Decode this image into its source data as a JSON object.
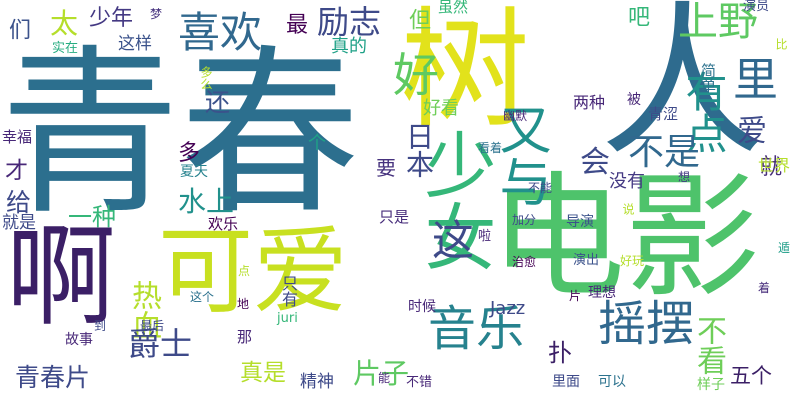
{
  "words": [
    {
      "text": "青春",
      "color": "#2c6f8e"
    },
    {
      "text": "树",
      "color": "#e2e21b"
    },
    {
      "text": "人",
      "color": "#2e6b8e"
    },
    {
      "text": "电影",
      "color": "#4ec36b"
    },
    {
      "text": "可爱",
      "color": "#c8e020"
    },
    {
      "text": "啊",
      "color": "#3b1f66"
    },
    {
      "text": "少女",
      "color": "#35b779"
    },
    {
      "text": "又与",
      "color": "#21918c"
    },
    {
      "text": "摇摆",
      "color": "#31688e"
    },
    {
      "text": "音乐",
      "color": "#26828e"
    },
    {
      "text": "喜欢",
      "color": "#31688e"
    },
    {
      "text": "好",
      "color": "#5ec962"
    },
    {
      "text": "有点",
      "color": "#21918c"
    },
    {
      "text": "上野",
      "color": "#5ec962"
    },
    {
      "text": "里",
      "color": "#31688e"
    },
    {
      "text": "爱",
      "color": "#3e4a89"
    },
    {
      "text": "不是",
      "color": "#31688e"
    },
    {
      "text": "不看",
      "color": "#6ece58"
    },
    {
      "text": "太",
      "color": "#b5de2b"
    },
    {
      "text": "少年",
      "color": "#443983"
    },
    {
      "text": "最",
      "color": "#440154"
    },
    {
      "text": "励志",
      "color": "#3e4a89"
    },
    {
      "text": "但",
      "color": "#6ece58"
    },
    {
      "text": "吧",
      "color": "#35b779"
    },
    {
      "text": "们",
      "color": "#3b528b"
    },
    {
      "text": "这样",
      "color": "#3b528b"
    },
    {
      "text": "实在",
      "color": "#27ad81"
    },
    {
      "text": "梦",
      "color": "#46327e"
    },
    {
      "text": "虽然",
      "color": "#35b779"
    },
    {
      "text": "演员",
      "color": "#3e4a89"
    },
    {
      "text": "真的",
      "color": "#1fa187"
    },
    {
      "text": "多么",
      "color": "#b5de2b"
    },
    {
      "text": "还",
      "color": "#3b528b"
    },
    {
      "text": "日本",
      "color": "#3e4a89"
    },
    {
      "text": "好看",
      "color": "#6ece58"
    },
    {
      "text": "被",
      "color": "#482878"
    },
    {
      "text": "简单",
      "color": "#2c728e"
    },
    {
      "text": "两种",
      "color": "#482878"
    },
    {
      "text": "比",
      "color": "#b5de2b"
    },
    {
      "text": "幽默",
      "color": "#482878"
    },
    {
      "text": "青涩",
      "color": "#3e4a89"
    },
    {
      "text": "幸福",
      "color": "#482878"
    },
    {
      "text": "多",
      "color": "#440154"
    },
    {
      "text": "会",
      "color": "#3e4a89"
    },
    {
      "text": "夏天",
      "color": "#26828e"
    },
    {
      "text": "个",
      "color": "#1fa187"
    },
    {
      "text": "看着",
      "color": "#2c728e"
    },
    {
      "text": "就",
      "color": "#472d7b"
    },
    {
      "text": "世界",
      "color": "#b5de2b"
    },
    {
      "text": "才",
      "color": "#482878"
    },
    {
      "text": "水上",
      "color": "#21918c"
    },
    {
      "text": "要",
      "color": "#46327e"
    },
    {
      "text": "没有",
      "color": "#443983"
    },
    {
      "text": "不能",
      "color": "#3e4a89"
    },
    {
      "text": "想",
      "color": "#443983"
    },
    {
      "text": "给",
      "color": "#3e4a89"
    },
    {
      "text": "一种",
      "color": "#35b779"
    },
    {
      "text": "就是",
      "color": "#3e4a89"
    },
    {
      "text": "欢乐",
      "color": "#440154"
    },
    {
      "text": "只是",
      "color": "#472d7b"
    },
    {
      "text": "加分",
      "color": "#3e4a89"
    },
    {
      "text": "导演",
      "color": "#3b528b"
    },
    {
      "text": "说",
      "color": "#b5de2b"
    },
    {
      "text": "遁",
      "color": "#1f9e89"
    },
    {
      "text": "这",
      "color": "#3e4a89"
    },
    {
      "text": "啦",
      "color": "#482878"
    },
    {
      "text": "治愈",
      "color": "#440154"
    },
    {
      "text": "演出",
      "color": "#3b528b"
    },
    {
      "text": "好玩",
      "color": "#b5de2b"
    },
    {
      "text": "热血",
      "color": "#b5de2b"
    },
    {
      "text": "点",
      "color": "#b5de2b"
    },
    {
      "text": "这个",
      "color": "#2c728e"
    },
    {
      "text": "地",
      "color": "#440154"
    },
    {
      "text": "只有",
      "color": "#3e4a89"
    },
    {
      "text": "Jazz",
      "color": "#3e4a89"
    },
    {
      "text": "片",
      "color": "#440154"
    },
    {
      "text": "理想",
      "color": "#482878"
    },
    {
      "text": "着",
      "color": "#472d7b"
    },
    {
      "text": "juri",
      "color": "#35b779"
    },
    {
      "text": "时候",
      "color": "#482878"
    },
    {
      "text": "到",
      "color": "#3e4a89"
    },
    {
      "text": "最后",
      "color": "#3e4a89"
    },
    {
      "text": "那",
      "color": "#482878"
    },
    {
      "text": "故事",
      "color": "#482878"
    },
    {
      "text": "爵士",
      "color": "#3e4a89"
    },
    {
      "text": "扑",
      "color": "#3b1f66"
    },
    {
      "text": "真是",
      "color": "#b5de2b"
    },
    {
      "text": "精神",
      "color": "#3e4a89"
    },
    {
      "text": "片子",
      "color": "#5ec962"
    },
    {
      "text": "五个",
      "color": "#3b1f66"
    },
    {
      "text": "青春片",
      "color": "#3e4a89"
    },
    {
      "text": "能",
      "color": "#482878"
    },
    {
      "text": "不错",
      "color": "#482878"
    },
    {
      "text": "里面",
      "color": "#3e4a89"
    },
    {
      "text": "可以",
      "color": "#2c728e"
    },
    {
      "text": "样子",
      "color": "#6ece58"
    }
  ]
}
